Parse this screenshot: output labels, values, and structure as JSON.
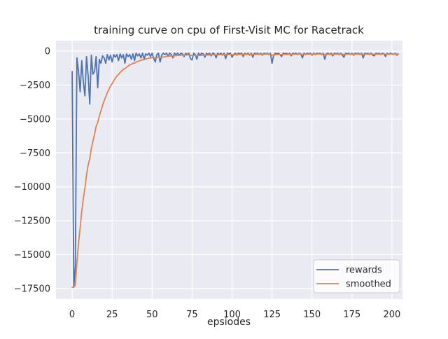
{
  "figure": {
    "background": "#ffffff",
    "text_color": "#262626"
  },
  "chart_data": {
    "type": "line",
    "title": "training curve on cpu of First-Visit MC for Racetrack",
    "xlabel": "epsiodes",
    "ylabel": "",
    "grid": true,
    "plot_background": "#eaeaf2",
    "gridline_color": "#ffffff",
    "xlim": [
      -10.1,
      206.6
    ],
    "ylim": [
      -18275,
      775
    ],
    "x_ticks": [
      0,
      25,
      50,
      75,
      100,
      125,
      150,
      175,
      200
    ],
    "x_tick_labels": [
      "0",
      "25",
      "50",
      "75",
      "100",
      "125",
      "150",
      "175",
      "200"
    ],
    "y_ticks": [
      0,
      -2500,
      -5000,
      -7500,
      -10000,
      -12500,
      -15000,
      -17500
    ],
    "y_tick_labels": [
      "0",
      "−2500",
      "−5000",
      "−7500",
      "−10000",
      "−12500",
      "−15000",
      "−17500"
    ],
    "legend": {
      "position": "lower right",
      "entries": [
        "rewards",
        "smoothed"
      ]
    },
    "series": [
      {
        "name": "rewards",
        "color": "#4c72b0",
        "x_start": 0,
        "x_step": 1,
        "values": [
          -1500,
          -17400,
          -15800,
          -500,
          -1500,
          -3000,
          -700,
          -2300,
          -3300,
          -400,
          -1800,
          -3900,
          -300,
          -1700,
          -1500,
          -400,
          -2700,
          -600,
          -900,
          -350,
          -500,
          -900,
          -250,
          -650,
          -300,
          -800,
          -250,
          -450,
          -250,
          -700,
          -200,
          -500,
          -250,
          -900,
          -200,
          -400,
          -250,
          -600,
          -200,
          -700,
          -150,
          -350,
          -200,
          -500,
          -150,
          -600,
          -200,
          -300,
          -150,
          -400,
          -150,
          -550,
          -800,
          -250,
          -150,
          -800,
          -300,
          -150,
          -250,
          -150,
          -350,
          -150,
          -250,
          -500,
          -150,
          -250,
          -150,
          -300,
          -150,
          -200,
          -400,
          -150,
          -250,
          -150,
          -550,
          -650,
          -150,
          -250,
          -600,
          -150,
          -300,
          -150,
          -200,
          -450,
          -150,
          -250,
          -150,
          -350,
          -150,
          -200,
          -500,
          -150,
          -250,
          -150,
          -300,
          -150,
          -550,
          -150,
          -200,
          -150,
          -450,
          -250,
          -150,
          -300,
          -150,
          -200,
          -150,
          -400,
          -150,
          -250,
          -150,
          -300,
          -150,
          -450,
          -150,
          -200,
          -150,
          -250,
          -150,
          -300,
          -150,
          -200,
          -150,
          -250,
          -150,
          -900,
          -300,
          -150,
          -200,
          -150,
          -250,
          -400,
          -150,
          -200,
          -150,
          -250,
          -150,
          -350,
          -150,
          -200,
          -150,
          -250,
          -150,
          -200,
          -500,
          -150,
          -250,
          -150,
          -200,
          -150,
          -300,
          -150,
          -250,
          -150,
          -200,
          -150,
          -250,
          -150,
          -600,
          -200,
          -150,
          -250,
          -150,
          -350,
          -150,
          -200,
          -150,
          -250,
          -150,
          -300,
          -450,
          -150,
          -200,
          -150,
          -250,
          -150,
          -300,
          -150,
          -200,
          -150,
          -250,
          -150,
          -500,
          -150,
          -200,
          -150,
          -250,
          -150,
          -300,
          -350,
          -150,
          -200,
          -150,
          -250,
          -150,
          -200,
          -400,
          -150,
          -250,
          -150,
          -200,
          -250,
          -150,
          -300,
          -200
        ]
      },
      {
        "name": "smoothed",
        "color": "#dd8452",
        "x_start": 0,
        "x_step": 1,
        "values": [
          -17400,
          -17400,
          -17240,
          -15566,
          -14159,
          -13043,
          -11809,
          -10858,
          -10102,
          -9132,
          -8399,
          -7949,
          -7184,
          -6636,
          -6122,
          -5550,
          -5265,
          -4798,
          -4409,
          -4003,
          -3652,
          -3377,
          -3064,
          -2823,
          -2571,
          -2393,
          -2179,
          -2006,
          -1830,
          -1717,
          -1565,
          -1459,
          -1338,
          -1294,
          -1185,
          -1106,
          -1020,
          -978,
          -900,
          -880,
          -807,
          -761,
          -705,
          -685,
          -631,
          -628,
          -585,
          -557,
          -516,
          -504,
          -469,
          -477,
          -509,
          -483,
          -450,
          -485,
          -466,
          -434,
          -416,
          -389,
          -385,
          -362,
          -351,
          -366,
          -344,
          -335,
          -316,
          -315,
          -298,
          -288,
          -299,
          -284,
          -281,
          -268,
          -296,
          -331,
          -313,
          -307,
          -336,
          -317,
          -316,
          -299,
          -289,
          -305,
          -290,
          -286,
          -272,
          -280,
          -267,
          -260,
          -284,
          -271,
          -269,
          -257,
          -261,
          -250,
          -280,
          -267,
          -260,
          -249,
          -269,
          -267,
          -255,
          -260,
          -249,
          -244,
          -235,
          -251,
          -241,
          -242,
          -233,
          -240,
          -231,
          -253,
          -242,
          -238,
          -229,
          -231,
          -223,
          -231,
          -223,
          -220,
          -213,
          -217,
          -210,
          -279,
          -281,
          -268,
          -261,
          -250,
          -250,
          -265,
          -254,
          -248,
          -238,
          -239,
          -231,
          -243,
          -233,
          -230,
          -222,
          -225,
          -217,
          -215,
          -244,
          -234,
          -236,
          -227,
          -224,
          -217,
          -225,
          -218,
          -221,
          -214,
          -212,
          -206,
          -210,
          -204,
          -244,
          -239,
          -230,
          -232,
          -224,
          -237,
          -228,
          -225,
          -218,
          -221,
          -214,
          -222,
          -245,
          -236,
          -232,
          -224,
          -227,
          -219,
          -227,
          -219,
          -217,
          -211,
          -215,
          -208,
          -237,
          -229,
          -226,
          -218,
          -221,
          -214,
          -223,
          -235,
          -227,
          -224,
          -217,
          -220,
          -213,
          -212,
          -231,
          -223,
          -225,
          -218,
          -216,
          -219,
          -212,
          -221,
          -219
        ]
      }
    ]
  }
}
